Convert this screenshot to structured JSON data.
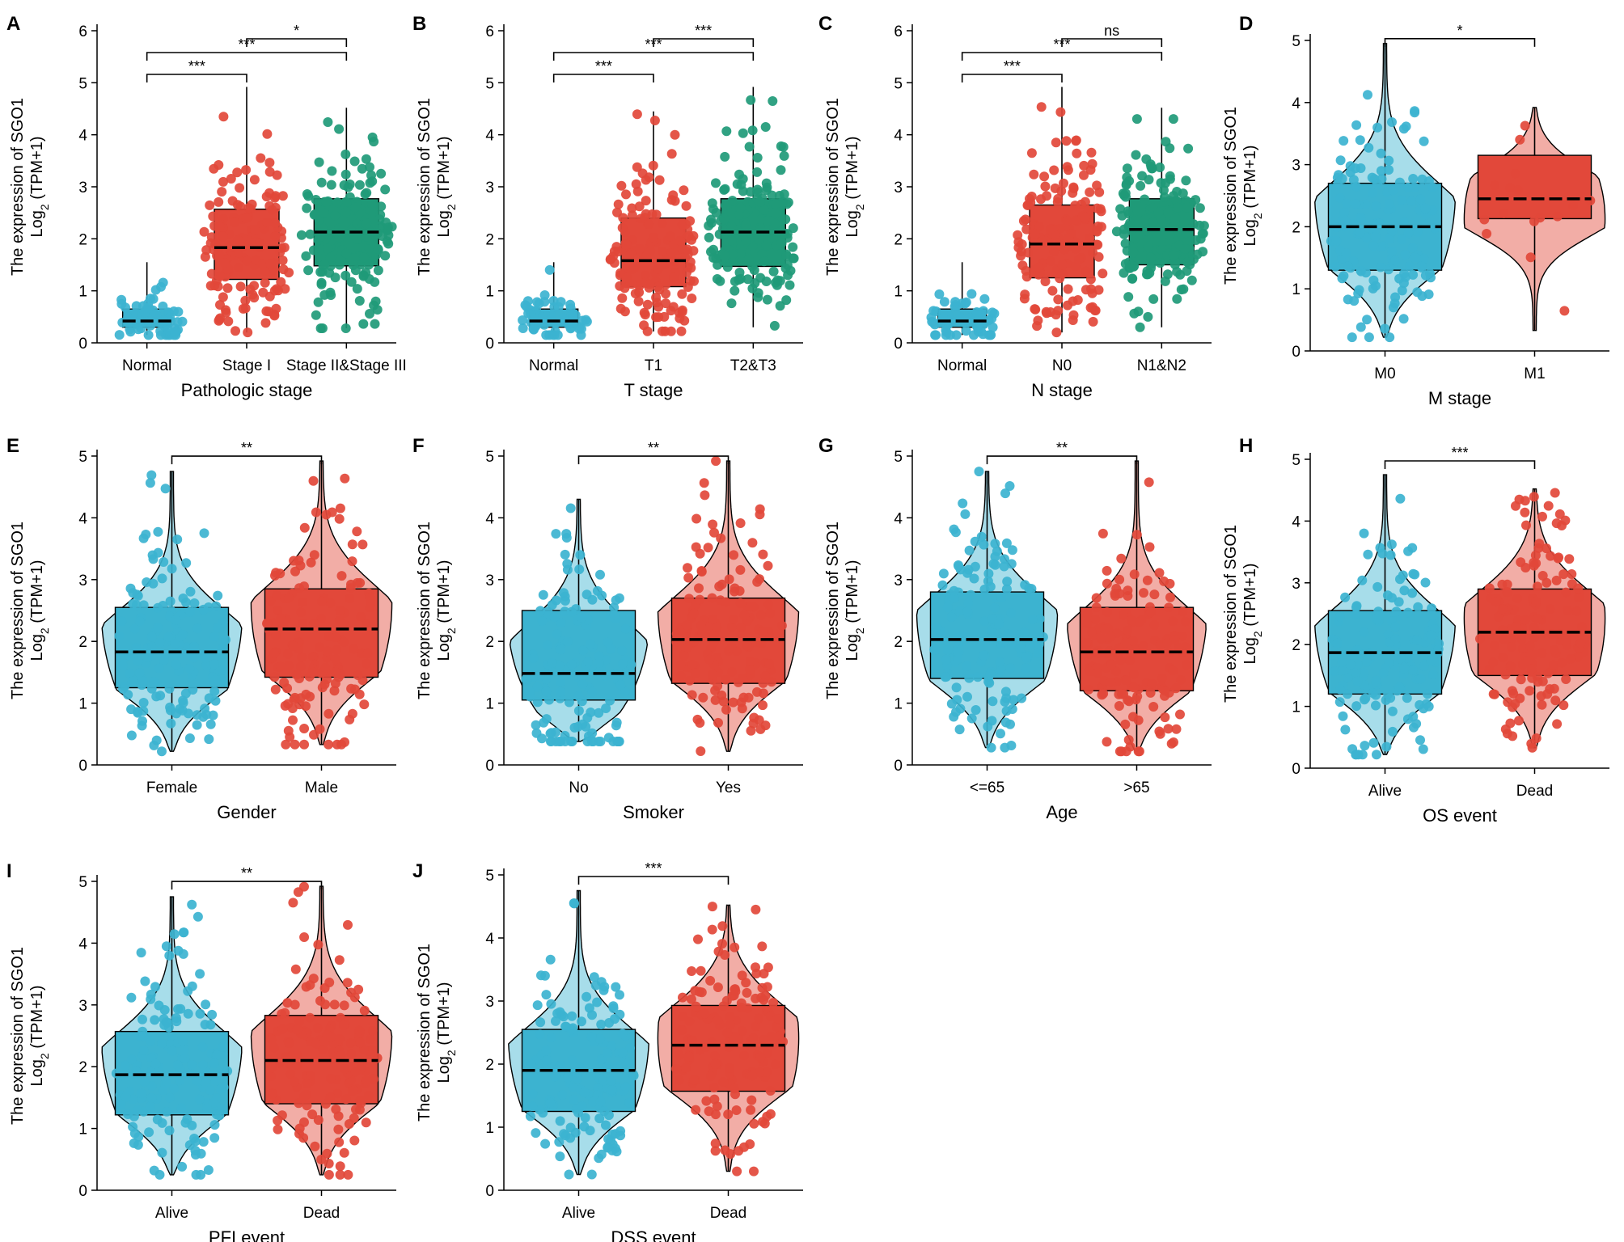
{
  "colors": {
    "blue": "#3cb3d0",
    "red": "#e2483a",
    "green": "#1f9a78"
  },
  "ylabel_line1": "The expression of SGO1",
  "ylabel_line2_main": "Log",
  "ylabel_line2_sub": "2",
  "ylabel_line2_tail": " (TPM+1)",
  "chart_data": [
    {
      "panel": "A",
      "type": "box",
      "xlabel": "Pathologic stage",
      "ylim": [
        0,
        6
      ],
      "yticks": [
        0,
        1,
        2,
        3,
        4,
        5,
        6
      ],
      "categories": [
        "Normal",
        "Stage I",
        "Stage II&Stage III"
      ],
      "colors": [
        "#3cb3d0",
        "#e2483a",
        "#1f9a78"
      ],
      "boxes": [
        {
          "min": 0.15,
          "q1": 0.3,
          "median": 0.42,
          "q3": 0.65,
          "max": 1.55
        },
        {
          "min": 0.2,
          "q1": 1.22,
          "median": 1.83,
          "q3": 2.57,
          "max": 4.92
        },
        {
          "min": 0.28,
          "q1": 1.48,
          "median": 2.13,
          "q3": 2.77,
          "max": 4.52
        }
      ],
      "comparisons": [
        {
          "from": 0,
          "to": 1,
          "label": "***"
        },
        {
          "from": 0,
          "to": 2,
          "label": "***"
        },
        {
          "from": 1,
          "to": 2,
          "label": "*"
        }
      ]
    },
    {
      "panel": "B",
      "type": "box",
      "xlabel": "T stage",
      "ylim": [
        0,
        6
      ],
      "yticks": [
        0,
        1,
        2,
        3,
        4,
        5,
        6
      ],
      "categories": [
        "Normal",
        "T1",
        "T2&T3"
      ],
      "colors": [
        "#3cb3d0",
        "#e2483a",
        "#1f9a78"
      ],
      "boxes": [
        {
          "min": 0.15,
          "q1": 0.3,
          "median": 0.42,
          "q3": 0.65,
          "max": 1.55
        },
        {
          "min": 0.22,
          "q1": 1.08,
          "median": 1.58,
          "q3": 2.4,
          "max": 4.45
        },
        {
          "min": 0.3,
          "q1": 1.47,
          "median": 2.13,
          "q3": 2.77,
          "max": 4.92
        }
      ],
      "comparisons": [
        {
          "from": 0,
          "to": 1,
          "label": "***"
        },
        {
          "from": 0,
          "to": 2,
          "label": "***"
        },
        {
          "from": 1,
          "to": 2,
          "label": "***"
        }
      ]
    },
    {
      "panel": "C",
      "type": "box",
      "xlabel": "N stage",
      "ylim": [
        0,
        6
      ],
      "yticks": [
        0,
        1,
        2,
        3,
        4,
        5,
        6
      ],
      "categories": [
        "Normal",
        "N0",
        "N1&N2"
      ],
      "colors": [
        "#3cb3d0",
        "#e2483a",
        "#1f9a78"
      ],
      "boxes": [
        {
          "min": 0.15,
          "q1": 0.3,
          "median": 0.42,
          "q3": 0.65,
          "max": 1.55
        },
        {
          "min": 0.2,
          "q1": 1.25,
          "median": 1.9,
          "q3": 2.65,
          "max": 4.92
        },
        {
          "min": 0.3,
          "q1": 1.5,
          "median": 2.18,
          "q3": 2.77,
          "max": 4.52
        }
      ],
      "comparisons": [
        {
          "from": 0,
          "to": 1,
          "label": "***"
        },
        {
          "from": 0,
          "to": 2,
          "label": "***"
        },
        {
          "from": 1,
          "to": 2,
          "label": "ns"
        }
      ]
    },
    {
      "panel": "D",
      "type": "violin",
      "xlabel": "M stage",
      "ylim": [
        0,
        5
      ],
      "yticks": [
        0,
        1,
        2,
        3,
        4,
        5
      ],
      "categories": [
        "M0",
        "M1"
      ],
      "colors": [
        "#3cb3d0",
        "#e2483a"
      ],
      "boxes": [
        {
          "min": 0.22,
          "q1": 1.3,
          "median": 2.0,
          "q3": 2.7,
          "max": 4.95
        },
        {
          "min": 0.33,
          "q1": 2.13,
          "median": 2.45,
          "q3": 3.15,
          "max": 3.92
        }
      ],
      "comparisons": [
        {
          "from": 0,
          "to": 1,
          "label": "*"
        }
      ]
    },
    {
      "panel": "E",
      "type": "violin",
      "xlabel": "Gender",
      "ylim": [
        0,
        5
      ],
      "yticks": [
        0,
        1,
        2,
        3,
        4,
        5
      ],
      "categories": [
        "Female",
        "Male"
      ],
      "colors": [
        "#3cb3d0",
        "#e2483a"
      ],
      "boxes": [
        {
          "min": 0.22,
          "q1": 1.25,
          "median": 1.83,
          "q3": 2.55,
          "max": 4.75
        },
        {
          "min": 0.33,
          "q1": 1.42,
          "median": 2.2,
          "q3": 2.85,
          "max": 4.92
        }
      ],
      "comparisons": [
        {
          "from": 0,
          "to": 1,
          "label": "**"
        }
      ]
    },
    {
      "panel": "F",
      "type": "violin",
      "xlabel": "Smoker",
      "ylim": [
        0,
        5
      ],
      "yticks": [
        0,
        1,
        2,
        3,
        4,
        5
      ],
      "categories": [
        "No",
        "Yes"
      ],
      "colors": [
        "#3cb3d0",
        "#e2483a"
      ],
      "boxes": [
        {
          "min": 0.38,
          "q1": 1.05,
          "median": 1.48,
          "q3": 2.5,
          "max": 4.3
        },
        {
          "min": 0.22,
          "q1": 1.32,
          "median": 2.03,
          "q3": 2.7,
          "max": 4.92
        }
      ],
      "comparisons": [
        {
          "from": 0,
          "to": 1,
          "label": "**"
        }
      ]
    },
    {
      "panel": "G",
      "type": "violin",
      "xlabel": "Age",
      "ylim": [
        0,
        5
      ],
      "yticks": [
        0,
        1,
        2,
        3,
        4,
        5
      ],
      "categories": [
        "<=65",
        ">65"
      ],
      "colors": [
        "#3cb3d0",
        "#e2483a"
      ],
      "boxes": [
        {
          "min": 0.28,
          "q1": 1.4,
          "median": 2.03,
          "q3": 2.8,
          "max": 4.75
        },
        {
          "min": 0.22,
          "q1": 1.2,
          "median": 1.83,
          "q3": 2.55,
          "max": 4.92
        }
      ],
      "comparisons": [
        {
          "from": 0,
          "to": 1,
          "label": "**"
        }
      ]
    },
    {
      "panel": "H",
      "type": "violin",
      "xlabel": "OS event",
      "ylim": [
        0,
        5
      ],
      "yticks": [
        0,
        1,
        2,
        3,
        4,
        5
      ],
      "categories": [
        "Alive",
        "Dead"
      ],
      "colors": [
        "#3cb3d0",
        "#e2483a"
      ],
      "boxes": [
        {
          "min": 0.22,
          "q1": 1.2,
          "median": 1.87,
          "q3": 2.55,
          "max": 4.75
        },
        {
          "min": 0.33,
          "q1": 1.5,
          "median": 2.2,
          "q3": 2.9,
          "max": 4.52
        }
      ],
      "comparisons": [
        {
          "from": 0,
          "to": 1,
          "label": "***"
        }
      ]
    },
    {
      "panel": "I",
      "type": "violin",
      "xlabel": "PFI event",
      "ylim": [
        0,
        5
      ],
      "yticks": [
        0,
        1,
        2,
        3,
        4,
        5
      ],
      "categories": [
        "Alive",
        "Dead"
      ],
      "colors": [
        "#3cb3d0",
        "#e2483a"
      ],
      "boxes": [
        {
          "min": 0.25,
          "q1": 1.22,
          "median": 1.87,
          "q3": 2.57,
          "max": 4.75
        },
        {
          "min": 0.25,
          "q1": 1.4,
          "median": 2.1,
          "q3": 2.83,
          "max": 4.92
        }
      ],
      "comparisons": [
        {
          "from": 0,
          "to": 1,
          "label": "**"
        }
      ]
    },
    {
      "panel": "J",
      "type": "violin",
      "xlabel": "DSS event",
      "ylim": [
        0,
        5
      ],
      "yticks": [
        0,
        1,
        2,
        3,
        4,
        5
      ],
      "categories": [
        "Alive",
        "Dead"
      ],
      "colors": [
        "#3cb3d0",
        "#e2483a"
      ],
      "boxes": [
        {
          "min": 0.25,
          "q1": 1.25,
          "median": 1.9,
          "q3": 2.55,
          "max": 4.75
        },
        {
          "min": 0.3,
          "q1": 1.57,
          "median": 2.3,
          "q3": 2.93,
          "max": 4.52
        }
      ],
      "comparisons": [
        {
          "from": 0,
          "to": 1,
          "label": "***"
        }
      ]
    }
  ]
}
